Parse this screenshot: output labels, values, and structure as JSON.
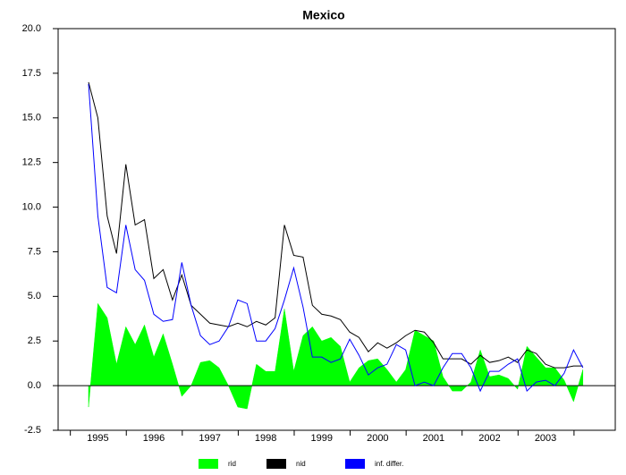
{
  "chart_data": {
    "type": "line",
    "title": "Mexico",
    "categories": [
      null,
      "1995",
      null,
      null,
      null,
      null,
      null,
      "1996",
      null,
      null,
      null,
      null,
      null,
      "1997",
      null,
      null,
      null,
      null,
      null,
      "1998",
      null,
      null,
      null,
      null,
      null,
      "1999",
      null,
      null,
      null,
      null,
      null,
      "2000",
      null,
      null,
      null,
      null,
      null,
      "2001",
      null,
      null,
      null,
      null,
      null,
      "2002",
      null,
      null,
      null,
      null,
      null,
      "2003",
      null,
      null,
      null,
      null
    ],
    "series": [
      {
        "name": "rid",
        "color": "#00ff00",
        "style": "area",
        "values": [
          -1.2,
          4.6,
          3.8,
          1.2,
          3.3,
          2.3,
          3.4,
          1.6,
          2.9,
          1.2,
          -0.6,
          0.0,
          1.3,
          1.4,
          1.0,
          0.0,
          -1.2,
          -1.3,
          1.2,
          0.8,
          0.8,
          4.3,
          0.8,
          2.8,
          3.3,
          2.5,
          2.7,
          2.2,
          0.2,
          1.0,
          1.4,
          1.5,
          0.9,
          0.2,
          0.9,
          3.1,
          2.8,
          2.5,
          0.5,
          -0.3,
          -0.3,
          0.2,
          2.0,
          0.5,
          0.6,
          0.4,
          -0.2,
          2.2,
          1.6,
          1.0,
          1.0,
          0.3,
          -0.9,
          0.9
        ]
      },
      {
        "name": "nid",
        "color": "#000000",
        "style": "line",
        "values": [
          17.0,
          15.0,
          9.5,
          7.4,
          12.4,
          9.0,
          9.3,
          6.0,
          6.5,
          4.8,
          6.2,
          4.5,
          4.0,
          3.5,
          3.4,
          3.3,
          3.5,
          3.3,
          3.6,
          3.4,
          3.8,
          9.0,
          7.3,
          7.2,
          4.5,
          4.0,
          3.9,
          3.7,
          3.0,
          2.7,
          1.9,
          2.4,
          2.1,
          2.4,
          2.8,
          3.1,
          3.0,
          2.4,
          1.5,
          1.5,
          1.5,
          1.2,
          1.7,
          1.3,
          1.4,
          1.6,
          1.3,
          2.0,
          1.8,
          1.2,
          1.0,
          1.0,
          1.1,
          1.1
        ]
      },
      {
        "name": "inf. differ.",
        "color": "#0000ff",
        "style": "line",
        "values": [
          16.9,
          9.5,
          5.5,
          5.2,
          9.0,
          6.5,
          5.9,
          4.0,
          3.6,
          3.7,
          6.9,
          4.5,
          2.8,
          2.3,
          2.5,
          3.3,
          4.8,
          4.6,
          2.5,
          2.5,
          3.2,
          4.8,
          6.6,
          4.4,
          1.6,
          1.6,
          1.3,
          1.5,
          2.6,
          1.7,
          0.6,
          1.0,
          1.2,
          2.3,
          2.0,
          0.0,
          0.2,
          0.0,
          1.0,
          1.8,
          1.8,
          1.0,
          -0.3,
          0.8,
          0.8,
          1.2,
          1.5,
          -0.3,
          0.2,
          0.3,
          0.0,
          0.7,
          2.0,
          1.0
        ]
      }
    ],
    "ylim": [
      -2.5,
      20
    ],
    "yticks": [
      -2.5,
      {
        "value": 0,
        "label": "0.0"
      },
      2.5,
      {
        "value": 5,
        "label": "5.0"
      },
      7.5,
      {
        "value": 10,
        "label": "10.0"
      },
      12.5,
      {
        "value": 15,
        "label": "15.0"
      },
      17.5,
      {
        "value": 20,
        "label": "20.0"
      }
    ],
    "zero_line": true
  }
}
